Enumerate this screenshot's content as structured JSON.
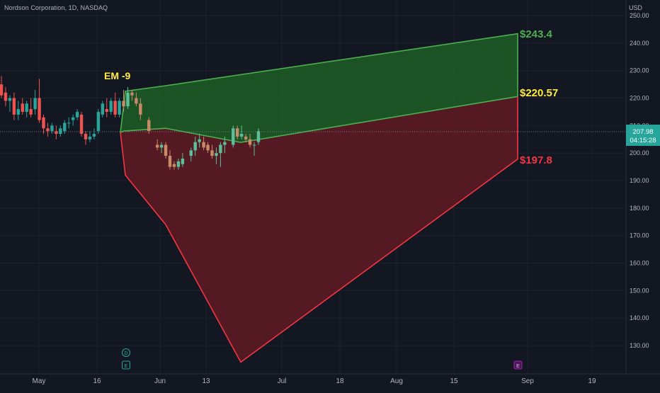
{
  "header": {
    "symbol_line": "Nordson Corporation, 1D, NASDAQ"
  },
  "price_scale": {
    "currency": "USD",
    "ticks": [
      "250.00",
      "240.00",
      "230.00",
      "220.00",
      "210.00",
      "200.00",
      "190.00",
      "180.00",
      "170.00",
      "160.00",
      "150.00",
      "140.00",
      "130.00"
    ],
    "current_price": "207.98",
    "countdown": "04:15:28"
  },
  "time_axis": {
    "labels": [
      "May",
      "16",
      "Jun",
      "13",
      "Jul",
      "18",
      "Aug",
      "15",
      "Sep",
      "19"
    ]
  },
  "annotations": {
    "em_label": "EM -9",
    "upper_label": "$243.4",
    "mid_label": "$220.57",
    "lower_label": "$197.8",
    "event_dividend": "D",
    "event_earnings_past": "E",
    "event_earnings_future": "E"
  },
  "colors": {
    "background": "#131722",
    "up": "#26a69a",
    "down": "#ef5350",
    "green_zone": "#1e5a26",
    "green_line": "#4caf50",
    "red_zone": "#5c1a22",
    "red_line": "#f23645",
    "em_text": "#ffeb3b",
    "price_tag": "#26a69a",
    "purple": "#9c27b0"
  },
  "chart_data": {
    "type": "candlestick",
    "title": "Nordson Corporation, 1D, NASDAQ",
    "ylim": [
      122,
      252
    ],
    "y_unit": "USD",
    "candles": [
      {
        "o": 225,
        "h": 228,
        "l": 220,
        "c": 221
      },
      {
        "o": 222,
        "h": 224,
        "l": 217,
        "c": 219
      },
      {
        "o": 219,
        "h": 221,
        "l": 215,
        "c": 220
      },
      {
        "o": 220,
        "h": 222,
        "l": 212,
        "c": 214
      },
      {
        "o": 214,
        "h": 219,
        "l": 212,
        "c": 216
      },
      {
        "o": 218,
        "h": 220,
        "l": 214,
        "c": 215
      },
      {
        "o": 215,
        "h": 219,
        "l": 213,
        "c": 218
      },
      {
        "o": 216,
        "h": 220,
        "l": 213,
        "c": 214
      },
      {
        "o": 216,
        "h": 223,
        "l": 214,
        "c": 220
      },
      {
        "o": 220,
        "h": 227,
        "l": 211,
        "c": 212
      },
      {
        "o": 213,
        "h": 214,
        "l": 207,
        "c": 209
      },
      {
        "o": 209,
        "h": 211,
        "l": 206,
        "c": 208
      },
      {
        "o": 208,
        "h": 211,
        "l": 207,
        "c": 210
      },
      {
        "o": 208,
        "h": 210,
        "l": 205,
        "c": 207
      },
      {
        "o": 207,
        "h": 210,
        "l": 206,
        "c": 209
      },
      {
        "o": 208,
        "h": 212,
        "l": 207,
        "c": 211
      },
      {
        "o": 211,
        "h": 213,
        "l": 209,
        "c": 211
      },
      {
        "o": 212,
        "h": 214,
        "l": 210,
        "c": 213
      },
      {
        "o": 213,
        "h": 216,
        "l": 212,
        "c": 215
      },
      {
        "o": 214,
        "h": 215,
        "l": 206,
        "c": 207
      },
      {
        "o": 207,
        "h": 208,
        "l": 203,
        "c": 205
      },
      {
        "o": 205,
        "h": 208,
        "l": 204,
        "c": 206
      },
      {
        "o": 206,
        "h": 209,
        "l": 205,
        "c": 207
      },
      {
        "o": 208,
        "h": 216,
        "l": 207,
        "c": 215
      },
      {
        "o": 214,
        "h": 219,
        "l": 213,
        "c": 218
      },
      {
        "o": 216,
        "h": 220,
        "l": 213,
        "c": 215
      },
      {
        "o": 215,
        "h": 220,
        "l": 214,
        "c": 219
      },
      {
        "o": 219,
        "h": 222,
        "l": 213,
        "c": 214
      },
      {
        "o": 214,
        "h": 220,
        "l": 213,
        "c": 219
      },
      {
        "o": 219,
        "h": 223,
        "l": 215,
        "c": 217
      },
      {
        "o": 217,
        "h": 224,
        "l": 216,
        "c": 222
      },
      {
        "o": 222,
        "h": 223,
        "l": 219,
        "c": 221
      },
      {
        "o": 220,
        "h": 222,
        "l": 217,
        "c": 218
      },
      {
        "o": 218,
        "h": 220,
        "l": 212,
        "c": 214
      },
      null,
      {
        "o": 212,
        "h": 213,
        "l": 207,
        "c": 208
      },
      null,
      {
        "o": 203,
        "h": 205,
        "l": 201,
        "c": 202
      },
      {
        "o": 202,
        "h": 204,
        "l": 200,
        "c": 203
      },
      {
        "o": 203,
        "h": 204,
        "l": 198,
        "c": 199
      },
      {
        "o": 199,
        "h": 201,
        "l": 194,
        "c": 195
      },
      {
        "o": 196,
        "h": 197,
        "l": 194,
        "c": 195
      },
      {
        "o": 195,
        "h": 198,
        "l": 194,
        "c": 197
      },
      {
        "o": 196,
        "h": 200,
        "l": 195,
        "c": 198
      },
      null,
      {
        "o": 199,
        "h": 202,
        "l": 197,
        "c": 201
      },
      {
        "o": 201,
        "h": 206,
        "l": 199,
        "c": 204
      },
      {
        "o": 204,
        "h": 207,
        "l": 202,
        "c": 205
      },
      {
        "o": 204,
        "h": 206,
        "l": 201,
        "c": 202
      },
      {
        "o": 203,
        "h": 204,
        "l": 200,
        "c": 201
      },
      {
        "o": 201,
        "h": 203,
        "l": 198,
        "c": 199
      },
      {
        "o": 199,
        "h": 202,
        "l": 196,
        "c": 200
      },
      {
        "o": 200,
        "h": 204,
        "l": 195,
        "c": 203
      },
      {
        "o": 203,
        "h": 206,
        "l": 200,
        "c": 204
      },
      null,
      {
        "o": 203,
        "h": 210,
        "l": 202,
        "c": 209
      },
      {
        "o": 209,
        "h": 210,
        "l": 205,
        "c": 206
      },
      {
        "o": 206,
        "h": 210,
        "l": 205,
        "c": 207
      },
      {
        "o": 206,
        "h": 207,
        "l": 204,
        "c": 205
      },
      {
        "o": 205,
        "h": 207,
        "l": 202,
        "c": 203
      },
      {
        "o": 203,
        "h": 204,
        "l": 199,
        "c": 203
      },
      {
        "o": 204,
        "h": 209,
        "l": 203,
        "c": 208
      }
    ],
    "expected_move_zones": {
      "upper_bound": [
        222.5,
        224.5,
        243.4
      ],
      "middle": [
        208,
        209,
        203.9,
        220.57
      ],
      "lower_bound": [
        192,
        174,
        124,
        197.8
      ]
    },
    "last_price": 207.98
  }
}
